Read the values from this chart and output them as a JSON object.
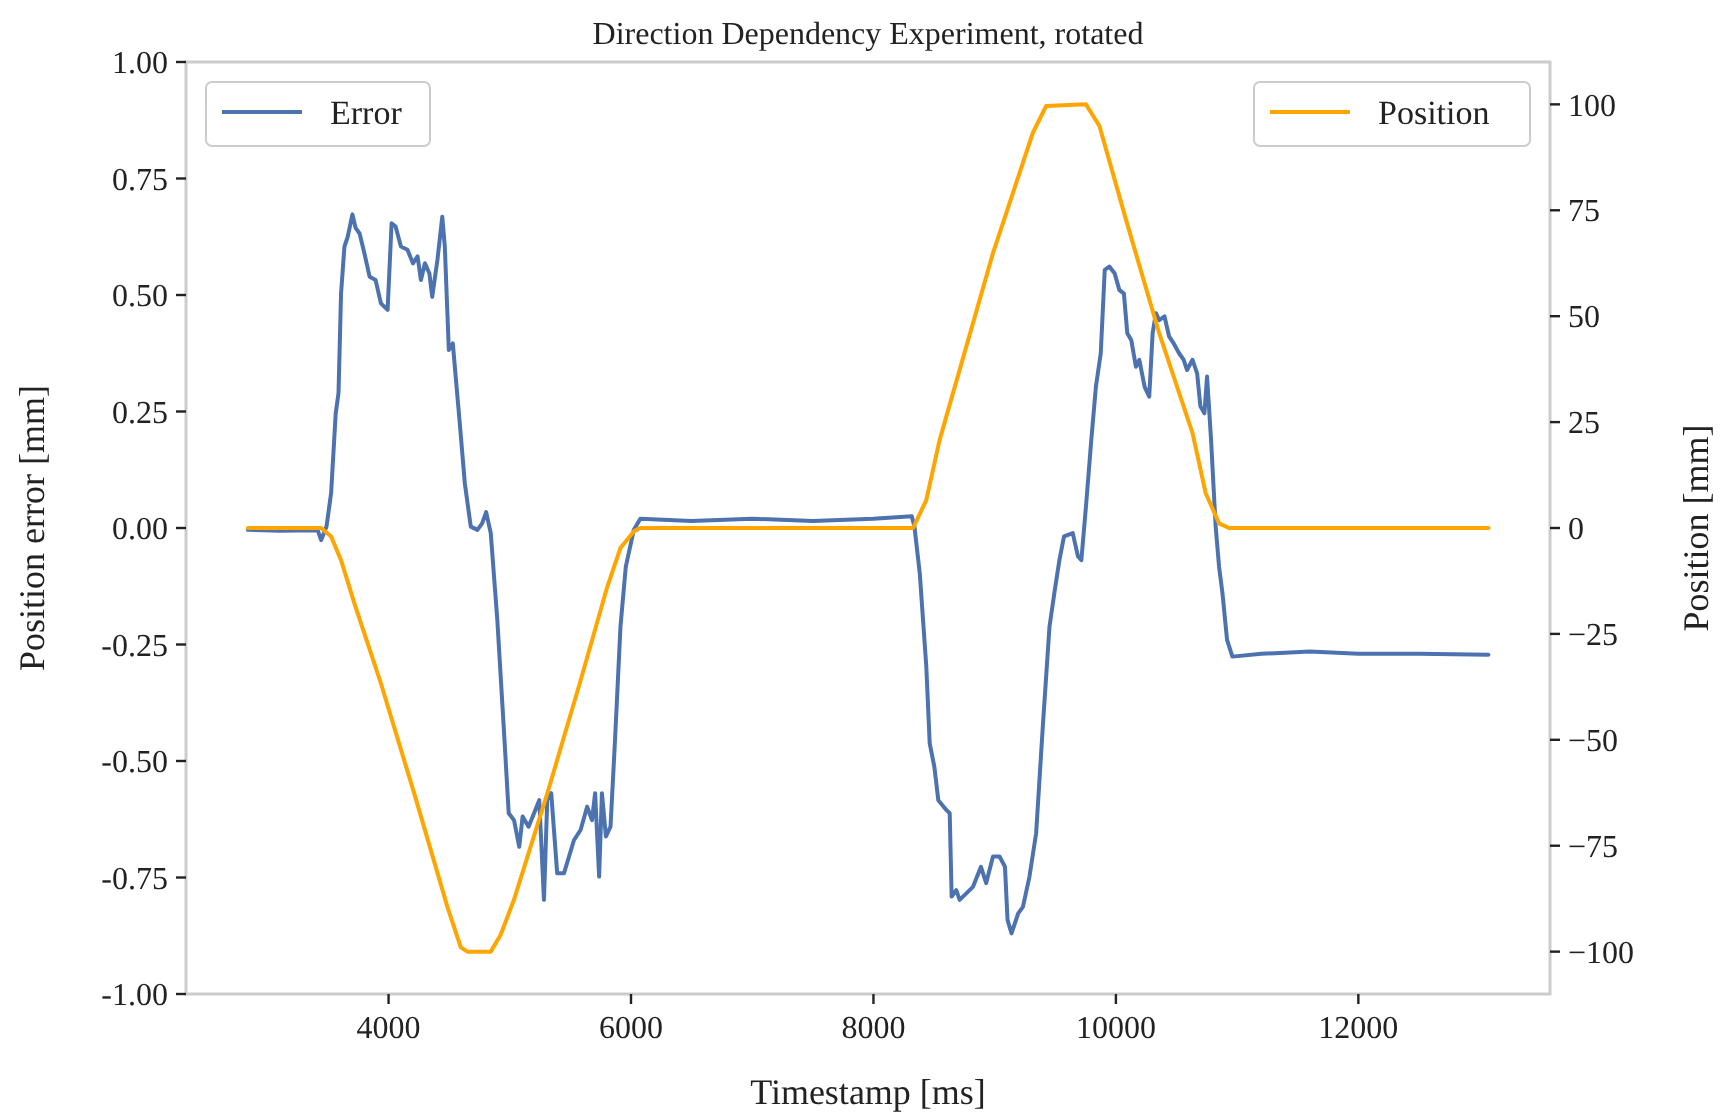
{
  "chart_data": {
    "type": "line",
    "title": "Direction Dependency Experiment, rotated",
    "xlabel": "Timestamp [ms]",
    "ylabel": "Position error [mm]",
    "y2label": "Position [mm]",
    "xlim": [
      2329,
      13581
    ],
    "xticks": [
      4000,
      6000,
      8000,
      10000,
      12000
    ],
    "ylim": [
      -1,
      1
    ],
    "yticks": [
      {
        "value": -1,
        "label": "-1.00"
      },
      {
        "value": -0.75,
        "label": "-0.75"
      },
      {
        "value": -0.5,
        "label": "-0.50"
      },
      {
        "value": -0.25,
        "label": "-0.25"
      },
      {
        "value": 0,
        "label": "0.00"
      },
      {
        "value": 0.25,
        "label": "0.25"
      },
      {
        "value": 0.5,
        "label": "0.50"
      },
      {
        "value": 0.75,
        "label": "0.75"
      },
      {
        "value": 1,
        "label": "1.00"
      }
    ],
    "y2lim": [
      -110,
      110
    ],
    "y2ticks": [
      {
        "value": -100,
        "label": "−100"
      },
      {
        "value": -75,
        "label": "−75"
      },
      {
        "value": -50,
        "label": "−50"
      },
      {
        "value": -25,
        "label": "−25"
      },
      0,
      25,
      50,
      75,
      100
    ],
    "grid": false,
    "legend": "top",
    "series": [
      {
        "name": "Error",
        "color": "#4c72b0",
        "axis": "y",
        "x": [
          2840,
          3100,
          3416,
          3444,
          3488,
          3526,
          3564,
          3587,
          3608,
          3636,
          3663,
          3702,
          3728,
          3761,
          3801,
          3844,
          3893,
          3937,
          3992,
          4025,
          4058,
          4102,
          4156,
          4201,
          4239,
          4267,
          4300,
          4337,
          4360,
          4403,
          4443,
          4464,
          4497,
          4530,
          4585,
          4629,
          4678,
          4733,
          4772,
          4805,
          4843,
          4897,
          4953,
          4991,
          5035,
          5078,
          5106,
          5155,
          5200,
          5243,
          5282,
          5309,
          5342,
          5391,
          5447,
          5529,
          5584,
          5638,
          5678,
          5704,
          5737,
          5760,
          5793,
          5831,
          5868,
          5913,
          5957,
          6023,
          6077,
          6500,
          7000,
          7500,
          8000,
          8316,
          8338,
          8382,
          8436,
          8464,
          8502,
          8535,
          8601,
          8629,
          8645,
          8683,
          8711,
          8766,
          8821,
          8887,
          8930,
          8986,
          9040,
          9085,
          9106,
          9139,
          9194,
          9233,
          9287,
          9342,
          9397,
          9452,
          9496,
          9534,
          9572,
          9644,
          9687,
          9715,
          9753,
          9797,
          9835,
          9875,
          9908,
          9946,
          9990,
          10028,
          10066,
          10094,
          10127,
          10165,
          10193,
          10237,
          10275,
          10303,
          10330,
          10357,
          10401,
          10439,
          10477,
          10521,
          10559,
          10587,
          10632,
          10670,
          10697,
          10730,
          10752,
          10785,
          10823,
          10851,
          10879,
          10917,
          10961,
          11200,
          11600,
          12000,
          12500,
          13073
        ],
        "values": [
          -0.004,
          -0.006,
          -0.005,
          -0.026,
          0.003,
          0.075,
          0.246,
          0.289,
          0.503,
          0.604,
          0.625,
          0.673,
          0.644,
          0.632,
          0.589,
          0.539,
          0.532,
          0.482,
          0.468,
          0.654,
          0.647,
          0.604,
          0.597,
          0.568,
          0.583,
          0.532,
          0.568,
          0.546,
          0.496,
          0.575,
          0.668,
          0.604,
          0.382,
          0.396,
          0.232,
          0.096,
          0.003,
          -0.004,
          0.01,
          0.034,
          -0.011,
          -0.197,
          -0.44,
          -0.612,
          -0.627,
          -0.684,
          -0.619,
          -0.641,
          -0.612,
          -0.584,
          -0.798,
          -0.584,
          -0.569,
          -0.741,
          -0.741,
          -0.67,
          -0.648,
          -0.598,
          -0.627,
          -0.569,
          -0.748,
          -0.569,
          -0.662,
          -0.641,
          -0.455,
          -0.212,
          -0.083,
          -0.004,
          0.02,
          0.015,
          0.02,
          0.015,
          0.02,
          0.025,
          0.003,
          -0.097,
          -0.298,
          -0.462,
          -0.512,
          -0.584,
          -0.605,
          -0.612,
          -0.791,
          -0.777,
          -0.798,
          -0.784,
          -0.77,
          -0.727,
          -0.762,
          -0.705,
          -0.705,
          -0.727,
          -0.841,
          -0.87,
          -0.827,
          -0.813,
          -0.748,
          -0.655,
          -0.426,
          -0.212,
          -0.133,
          -0.069,
          -0.018,
          -0.011,
          -0.061,
          -0.069,
          0.046,
          0.189,
          0.303,
          0.375,
          0.554,
          0.561,
          0.546,
          0.511,
          0.503,
          0.418,
          0.403,
          0.346,
          0.361,
          0.303,
          0.282,
          0.418,
          0.461,
          0.446,
          0.454,
          0.411,
          0.396,
          0.375,
          0.361,
          0.339,
          0.361,
          0.332,
          0.261,
          0.246,
          0.325,
          0.189,
          0.003,
          -0.083,
          -0.14,
          -0.24,
          -0.276,
          -0.27,
          -0.265,
          -0.27,
          -0.27,
          -0.272
        ]
      },
      {
        "name": "Position",
        "color": "#ffa500",
        "axis": "y2",
        "x": [
          2840,
          3444,
          3526,
          3608,
          3718,
          3937,
          4212,
          4486,
          4596,
          4650,
          4843,
          4925,
          5035,
          5309,
          5584,
          5803,
          5913,
          6023,
          6077,
          8327,
          8436,
          8546,
          8986,
          9315,
          9424,
          9753,
          9864,
          10083,
          10357,
          10632,
          10741,
          10851,
          10933,
          13073
        ],
        "values": [
          0,
          0,
          -2,
          -7.6,
          -17.8,
          -36.7,
          -62.7,
          -89.5,
          -99,
          -100,
          -100,
          -96,
          -87.7,
          -62.7,
          -36,
          -14,
          -4.7,
          -0.8,
          0,
          0,
          6.6,
          20.8,
          64.9,
          93.3,
          99.6,
          100,
          94.9,
          72.8,
          46,
          22.4,
          8.2,
          1.1,
          0,
          0
        ]
      }
    ]
  }
}
